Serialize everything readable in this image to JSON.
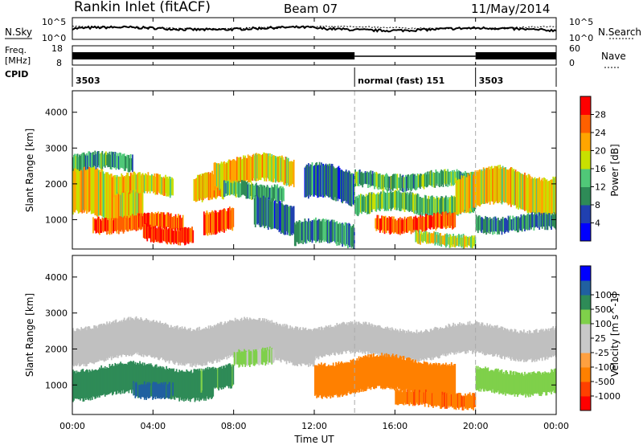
{
  "header": {
    "station": "Rankin Inlet (fitACF)",
    "beam": "Beam 07",
    "date": "11/May/2014"
  },
  "top_panels": {
    "nsky_label": "N.Sky",
    "nsearch_label": "N.Search",
    "nsky_ticks": [
      "10^5",
      "10^0"
    ],
    "nsearch_ticks": [
      "10^5",
      "10^0"
    ],
    "freq_label_line1": "Freq.",
    "freq_label_line2": "[MHz]",
    "freq_ticks": [
      "18",
      "8"
    ],
    "nave_label": "Nave",
    "nave_ticks": [
      "60",
      "0"
    ],
    "cpid_label": "CPID",
    "cpid_segments": [
      {
        "start_hour": 0,
        "end_hour": 14,
        "text": "3503"
      },
      {
        "start_hour": 14,
        "end_hour": 20,
        "text": "normal (fast) 151"
      },
      {
        "start_hour": 20,
        "end_hour": 24,
        "text": "3503"
      }
    ]
  },
  "colors": {
    "power_scale": [
      "#0000ff",
      "#2040b0",
      "#2e8b57",
      "#50c878",
      "#c8e000",
      "#ffa500",
      "#ff6000",
      "#ff0000"
    ],
    "velocity_scale": [
      "#ff0000",
      "#ff4000",
      "#ff8000",
      "#ffa040",
      "#c8c8c8",
      "#c8c8c8",
      "#7fd04a",
      "#2e8b57",
      "#2060a0",
      "#0000ff"
    ],
    "ground_scatter": "#c0c0c0"
  },
  "chart_data": [
    {
      "type": "heatmap",
      "ylabel": "Slant Range [km]",
      "xlabel": "",
      "xlim": [
        0,
        24
      ],
      "ylim": [
        180,
        4600
      ],
      "yticks": [
        "1000",
        "2000",
        "3000",
        "4000"
      ],
      "colorbar_label": "Power [dB]",
      "colorbar_ticks": [
        "4",
        "8",
        "12",
        "16",
        "20",
        "24",
        "28"
      ],
      "colorbar_range": [
        0,
        32
      ],
      "bands": [
        {
          "x0": 0,
          "x1": 3.5,
          "y0": 1000,
          "y1": 2300,
          "level": 20
        },
        {
          "x0": 0,
          "x1": 3,
          "y0": 2400,
          "y1": 2800,
          "level": 12
        },
        {
          "x0": 1,
          "x1": 5.5,
          "y0": 700,
          "y1": 1100,
          "level": 26
        },
        {
          "x0": 2,
          "x1": 5,
          "y0": 1700,
          "y1": 2200,
          "level": 20
        },
        {
          "x0": 3.5,
          "x1": 6,
          "y0": 400,
          "y1": 800,
          "level": 28
        },
        {
          "x0": 6,
          "x1": 7.5,
          "y0": 1500,
          "y1": 2200,
          "level": 22
        },
        {
          "x0": 7,
          "x1": 11,
          "y0": 2000,
          "y1": 2700,
          "level": 20
        },
        {
          "x0": 7.5,
          "x1": 10.5,
          "y0": 1600,
          "y1": 2000,
          "level": 12
        },
        {
          "x0": 6.5,
          "x1": 8,
          "y0": 700,
          "y1": 1300,
          "level": 26
        },
        {
          "x0": 9,
          "x1": 11,
          "y0": 700,
          "y1": 1500,
          "level": 8
        },
        {
          "x0": 11,
          "x1": 14,
          "y0": 300,
          "y1": 900,
          "level": 10
        },
        {
          "x0": 11.5,
          "x1": 14,
          "y0": 1500,
          "y1": 2400,
          "level": 8
        },
        {
          "x0": 14,
          "x1": 20,
          "y0": 1200,
          "y1": 1700,
          "level": 14
        },
        {
          "x0": 15,
          "x1": 19,
          "y0": 700,
          "y1": 1100,
          "level": 26
        },
        {
          "x0": 14,
          "x1": 20,
          "y0": 1900,
          "y1": 2300,
          "level": 12
        },
        {
          "x0": 17,
          "x1": 20,
          "y0": 300,
          "y1": 600,
          "level": 18
        },
        {
          "x0": 19,
          "x1": 24,
          "y0": 1300,
          "y1": 2300,
          "level": 20
        },
        {
          "x0": 20,
          "x1": 24,
          "y0": 700,
          "y1": 1100,
          "level": 10
        }
      ]
    },
    {
      "type": "heatmap",
      "ylabel": "Slant Range [km]",
      "xlabel": "Time UT",
      "xlim": [
        0,
        24
      ],
      "ylim": [
        180,
        4600
      ],
      "xticks": [
        "00:00",
        "04:00",
        "08:00",
        "12:00",
        "16:00",
        "20:00",
        "00:00"
      ],
      "yticks": [
        "1000",
        "2000",
        "3000",
        "4000"
      ],
      "colorbar_label": "Velocity [m s^-1]",
      "colorbar_ticks": [
        "-1000",
        "-500",
        "-100",
        "-25",
        "25",
        "100",
        "500",
        "1000"
      ],
      "bands": [
        {
          "x0": 0,
          "x1": 12,
          "y0": 1700,
          "y1": 2700,
          "kind": "ground"
        },
        {
          "x0": 12,
          "x1": 24,
          "y0": 1800,
          "y1": 2600,
          "kind": "ground"
        },
        {
          "x0": 0,
          "x1": 7,
          "y0": 700,
          "y1": 1500,
          "kind": 200
        },
        {
          "x0": 3,
          "x1": 5,
          "y0": 700,
          "y1": 1100,
          "kind": 700
        },
        {
          "x0": 6,
          "x1": 8,
          "y0": 900,
          "y1": 1500,
          "kind": 150
        },
        {
          "x0": 8,
          "x1": 10,
          "y0": 1600,
          "y1": 2000,
          "kind": 30
        },
        {
          "x0": 12,
          "x1": 19,
          "y0": 800,
          "y1": 1700,
          "kind": -300
        },
        {
          "x0": 16,
          "x1": 20,
          "y0": 400,
          "y1": 800,
          "kind": -400
        },
        {
          "x0": 20,
          "x1": 24,
          "y0": 800,
          "y1": 1400,
          "kind": 60
        }
      ]
    }
  ]
}
